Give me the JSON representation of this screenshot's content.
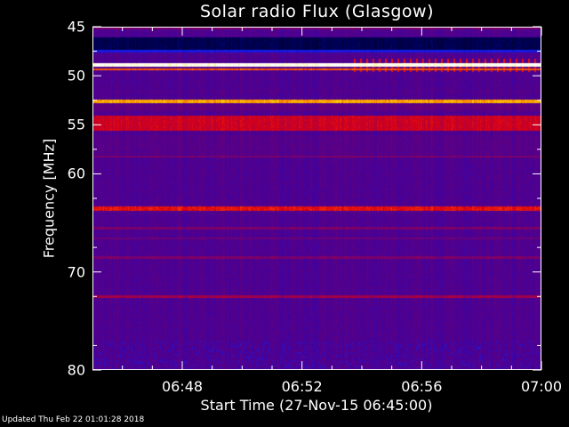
{
  "chart_data": {
    "type": "heatmap",
    "title": "Solar radio Flux (Glasgow)",
    "xlabel": "Start Time (27-Nov-15 06:45:00)",
    "ylabel": "Frequency [MHz]",
    "xlim": [
      "06:45",
      "07:00"
    ],
    "ylim": [
      45,
      80
    ],
    "y_inverted": true,
    "x_ticks": [
      {
        "label": "06:48",
        "minutes": 3
      },
      {
        "label": "06:52",
        "minutes": 7
      },
      {
        "label": "06:56",
        "minutes": 11
      },
      {
        "label": "07:00",
        "minutes": 15
      }
    ],
    "y_ticks": [
      {
        "label": "45",
        "value": 45
      },
      {
        "label": "50",
        "value": 50
      },
      {
        "label": "55",
        "value": 55
      },
      {
        "label": "60",
        "value": 60
      },
      {
        "label": "70",
        "value": 70
      },
      {
        "label": "80",
        "value": 80
      }
    ],
    "colormap": "black-blue-purple-red-yellow-white",
    "notable_bands_mhz": [
      48.8,
      49.3,
      52.6,
      55,
      63.5,
      72.5
    ]
  },
  "footer": "Updated Thu Feb 22 01:01:28 2018"
}
